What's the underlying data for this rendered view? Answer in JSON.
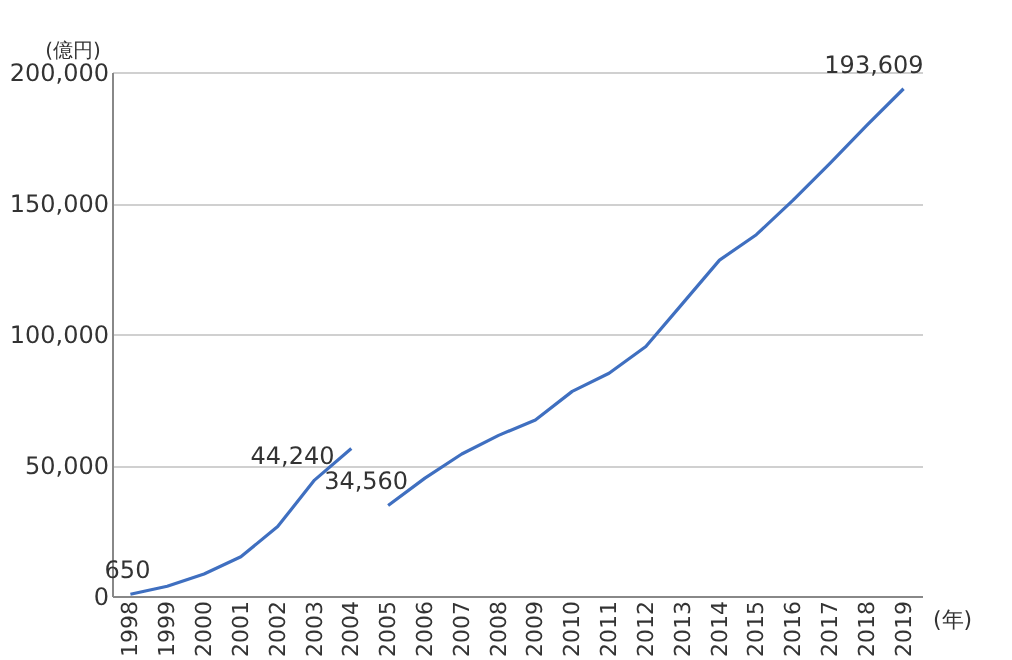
{
  "chart_data": {
    "type": "line",
    "xlabel": "(年)",
    "ylabel": "(億円)",
    "categories": [
      "1998",
      "1999",
      "2000",
      "2001",
      "2002",
      "2003",
      "2004",
      "2005",
      "2006",
      "2007",
      "2008",
      "2009",
      "2010",
      "2011",
      "2012",
      "2013",
      "2014",
      "2015",
      "2016",
      "2017",
      "2018",
      "2019"
    ],
    "series": [
      {
        "color": "#3f6fc0",
        "values": [
          650,
          3700,
          8400,
          15000,
          26500,
          44240,
          56300,
          null,
          null,
          null,
          null,
          null,
          null,
          null,
          null,
          null,
          null,
          null,
          null,
          null,
          null,
          null
        ],
        "value_labels": [
          "650",
          null,
          null,
          null,
          null,
          "44,240",
          null,
          null,
          null,
          null,
          null,
          null,
          null,
          null,
          null,
          null,
          null,
          null,
          null,
          null,
          null,
          null
        ]
      },
      {
        "color": "#3f6fc0",
        "values": [
          null,
          null,
          null,
          null,
          null,
          null,
          null,
          34560,
          45000,
          54200,
          61300,
          67200,
          78100,
          85000,
          95200,
          111700,
          128200,
          137900,
          151100,
          165100,
          179600,
          193609
        ],
        "value_labels": [
          null,
          null,
          null,
          null,
          null,
          null,
          null,
          "34,560",
          null,
          null,
          null,
          null,
          null,
          null,
          null,
          null,
          null,
          null,
          null,
          null,
          null,
          "193,609"
        ]
      }
    ],
    "ylim": [
      0,
      200000
    ],
    "yticks": [
      0,
      {
        "value": 50000,
        "label": "50,000"
      },
      {
        "value": 100000,
        "label": "100,000"
      },
      {
        "value": 150000,
        "label": "150,000"
      },
      {
        "value": 200000,
        "label": "200,000"
      }
    ],
    "grid": "y"
  }
}
